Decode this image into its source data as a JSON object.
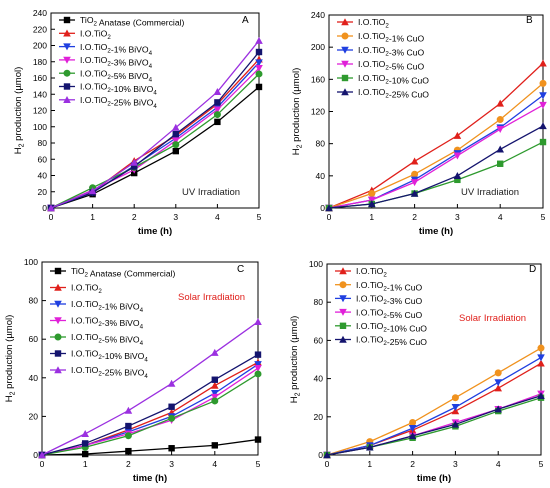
{
  "chart_data": [
    {
      "type": "line",
      "panel_label": "A",
      "annotation": "UV Irradiation",
      "annotation_color": "#222222",
      "xlabel": "time (h)",
      "ylabel": "H2 production (µmol)",
      "xlim": [
        0,
        5
      ],
      "ylim": [
        0,
        240
      ],
      "xticks": [
        0,
        1,
        2,
        3,
        4,
        5
      ],
      "yticks": [
        0,
        20,
        40,
        60,
        80,
        100,
        120,
        140,
        160,
        180,
        200,
        220,
        240
      ],
      "legend_position": "top-left",
      "x": [
        0,
        1,
        2,
        3,
        4,
        5
      ],
      "series": [
        {
          "name": "TiO2 Anatase (Commercial)",
          "color": "#000000",
          "marker": "square",
          "values": [
            0,
            17,
            43,
            70,
            106,
            149
          ]
        },
        {
          "name": "I.O.TiO2",
          "color": "#e0201b",
          "marker": "triangle-up",
          "values": [
            0,
            20,
            58,
            89,
            128,
            183
          ]
        },
        {
          "name": "I.O.TiO2-1% BiVO4",
          "color": "#1f3fe0",
          "marker": "triangle-down",
          "values": [
            0,
            19,
            52,
            86,
            124,
            179
          ]
        },
        {
          "name": "I.O.TiO2-3% BiVO4",
          "color": "#e020d8",
          "marker": "triangle-down",
          "values": [
            0,
            22,
            47,
            83,
            121,
            172
          ]
        },
        {
          "name": "I.O.TiO2-5% BiVO4",
          "color": "#2e9a2e",
          "marker": "circle",
          "values": [
            0,
            25,
            50,
            78,
            115,
            165
          ]
        },
        {
          "name": "I.O.TiO2-10% BiVO4",
          "color": "#14146e",
          "marker": "square",
          "values": [
            0,
            19,
            51,
            91,
            130,
            192
          ]
        },
        {
          "name": "I.O.TiO2-25% BiVO4",
          "color": "#9b30e0",
          "marker": "triangle-up",
          "values": [
            0,
            21,
            56,
            99,
            143,
            206
          ]
        }
      ]
    },
    {
      "type": "line",
      "panel_label": "B",
      "annotation": "UV Irradiation",
      "annotation_color": "#222222",
      "xlabel": "time (h)",
      "ylabel": "H2 production (µmol)",
      "xlim": [
        0,
        5
      ],
      "ylim": [
        0,
        240
      ],
      "xticks": [
        0,
        1,
        2,
        3,
        4,
        5
      ],
      "yticks": [
        0,
        40,
        80,
        120,
        160,
        200,
        240
      ],
      "legend_position": "top-left",
      "x": [
        0,
        1,
        2,
        3,
        4,
        5
      ],
      "series": [
        {
          "name": "I.O.TiO2",
          "color": "#e0201b",
          "marker": "triangle-up",
          "values": [
            0,
            22,
            58,
            90,
            130,
            180
          ]
        },
        {
          "name": "I.O.TiO2-1% CuO",
          "color": "#f0921e",
          "marker": "circle",
          "values": [
            0,
            18,
            42,
            72,
            110,
            155
          ]
        },
        {
          "name": "I.O.TiO2-3% CuO",
          "color": "#1f3fe0",
          "marker": "triangle-down",
          "values": [
            0,
            10,
            35,
            68,
            100,
            140
          ]
        },
        {
          "name": "I.O.TiO2-5% CuO",
          "color": "#e020d8",
          "marker": "triangle-down",
          "values": [
            0,
            10,
            32,
            65,
            98,
            128
          ]
        },
        {
          "name": "I.O.TiO2-10% CuO",
          "color": "#2e9a2e",
          "marker": "square",
          "values": [
            0,
            5,
            18,
            35,
            55,
            82
          ]
        },
        {
          "name": "I.O.TiO2-25% CuO",
          "color": "#14146e",
          "marker": "triangle-up",
          "values": [
            0,
            5,
            18,
            40,
            73,
            102
          ]
        }
      ]
    },
    {
      "type": "line",
      "panel_label": "C",
      "annotation": "Solar Irradiation",
      "annotation_color": "#e0201b",
      "xlabel": "time (h)",
      "ylabel": "H2 production (µmol)",
      "xlim": [
        0,
        5
      ],
      "ylim": [
        0,
        100
      ],
      "xticks": [
        0,
        1,
        2,
        3,
        4,
        5
      ],
      "yticks": [
        0,
        20,
        40,
        60,
        80,
        100
      ],
      "legend_position": "top-left",
      "x": [
        0,
        1,
        2,
        3,
        4,
        5
      ],
      "series": [
        {
          "name": "TiO2 Anatase (Commercial)",
          "color": "#000000",
          "marker": "square",
          "values": [
            0,
            0.5,
            2,
            3.5,
            5,
            8
          ]
        },
        {
          "name": "I.O.TiO2",
          "color": "#e0201b",
          "marker": "triangle-up",
          "values": [
            0,
            5,
            13,
            22,
            36,
            48
          ]
        },
        {
          "name": "I.O.TiO2-1% BiVO4",
          "color": "#1f3fe0",
          "marker": "triangle-down",
          "values": [
            0,
            5,
            12,
            20,
            32,
            47
          ]
        },
        {
          "name": "I.O.TiO2-3% BiVO4",
          "color": "#e020d8",
          "marker": "triangle-down",
          "values": [
            0,
            5,
            11,
            18,
            30,
            45
          ]
        },
        {
          "name": "I.O.TiO2-5% BiVO4",
          "color": "#2e9a2e",
          "marker": "circle",
          "values": [
            0,
            4,
            10,
            19,
            28,
            42
          ]
        },
        {
          "name": "I.O.TiO2-10% BiVO4",
          "color": "#14146e",
          "marker": "square",
          "values": [
            0,
            6,
            15,
            25,
            39,
            52
          ]
        },
        {
          "name": "I.O.TiO2-25% BiVO4",
          "color": "#9b30e0",
          "marker": "triangle-up",
          "values": [
            0,
            11,
            23,
            37,
            53,
            69
          ]
        }
      ]
    },
    {
      "type": "line",
      "panel_label": "D",
      "annotation": "Solar Irradiation",
      "annotation_color": "#e0201b",
      "xlabel": "time (h)",
      "ylabel": "H2 production (µmol)",
      "xlim": [
        0,
        5
      ],
      "ylim": [
        0,
        100
      ],
      "xticks": [
        0,
        1,
        2,
        3,
        4,
        5
      ],
      "yticks": [
        0,
        20,
        40,
        60,
        80,
        100
      ],
      "legend_position": "top-left",
      "x": [
        0,
        1,
        2,
        3,
        4,
        5
      ],
      "series": [
        {
          "name": "I.O.TiO2",
          "color": "#e0201b",
          "marker": "triangle-up",
          "values": [
            0,
            5,
            13,
            23,
            35,
            48
          ]
        },
        {
          "name": "I.O.TiO2-1% CuO",
          "color": "#f0921e",
          "marker": "circle",
          "values": [
            0,
            7,
            17,
            30,
            43,
            56
          ]
        },
        {
          "name": "I.O.TiO2-3% CuO",
          "color": "#1f3fe0",
          "marker": "triangle-down",
          "values": [
            0,
            5,
            14,
            25,
            38,
            51
          ]
        },
        {
          "name": "I.O.TiO2-5% CuO",
          "color": "#e020d8",
          "marker": "triangle-down",
          "values": [
            0,
            4,
            10,
            17,
            24,
            32
          ]
        },
        {
          "name": "I.O.TiO2-10% CuO",
          "color": "#2e9a2e",
          "marker": "square",
          "values": [
            0,
            4,
            9,
            15,
            23,
            30
          ]
        },
        {
          "name": "I.O.TiO2-25% CuO",
          "color": "#14146e",
          "marker": "triangle-up",
          "values": [
            0,
            4,
            10,
            16,
            24,
            31
          ]
        }
      ]
    }
  ]
}
